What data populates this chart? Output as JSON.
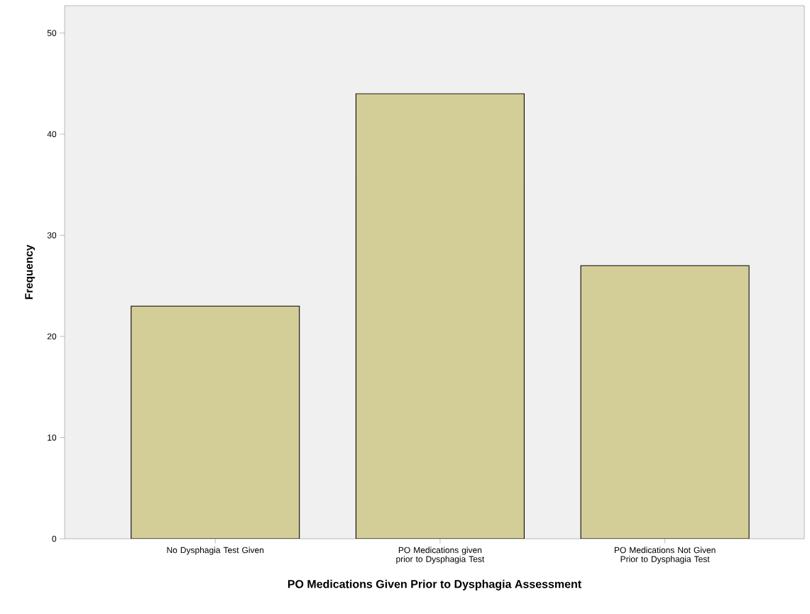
{
  "chart_data": {
    "type": "bar",
    "xlabel": "PO Medications Given Prior to Dysphagia Assessment",
    "ylabel": "Frequency",
    "categories": [
      "No Dysphagia Test Given",
      "PO Medications given prior to Dysphagia Test",
      "PO Medications Not Given Prior to Dysphagia Test"
    ],
    "values": [
      23,
      44,
      27
    ],
    "color": "#d3ce97",
    "ylim": [
      0,
      52.7
    ],
    "yticks": [
      0,
      10,
      20,
      30,
      40,
      50
    ],
    "grid": false
  }
}
